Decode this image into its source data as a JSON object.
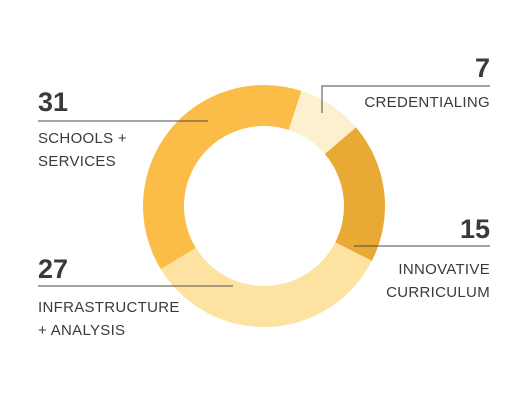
{
  "chart_data": {
    "type": "pie",
    "donut": true,
    "title": "",
    "slices": [
      {
        "value": 7,
        "label_lines": [
          "CREDENTIALING"
        ],
        "color": "#fdf0cf"
      },
      {
        "value": 15,
        "label_lines": [
          "INNOVATIVE",
          "CURRICULUM"
        ],
        "color": "#e9a935"
      },
      {
        "value": 27,
        "label_lines": [
          "INFRASTRUCTURE",
          "+ ANALYSIS"
        ],
        "color": "#fde2a1"
      },
      {
        "value": 31,
        "label_lines": [
          "SCHOOLS +",
          "SERVICES"
        ],
        "color": "#fcbd48"
      }
    ],
    "legend": "none",
    "grid": false
  }
}
